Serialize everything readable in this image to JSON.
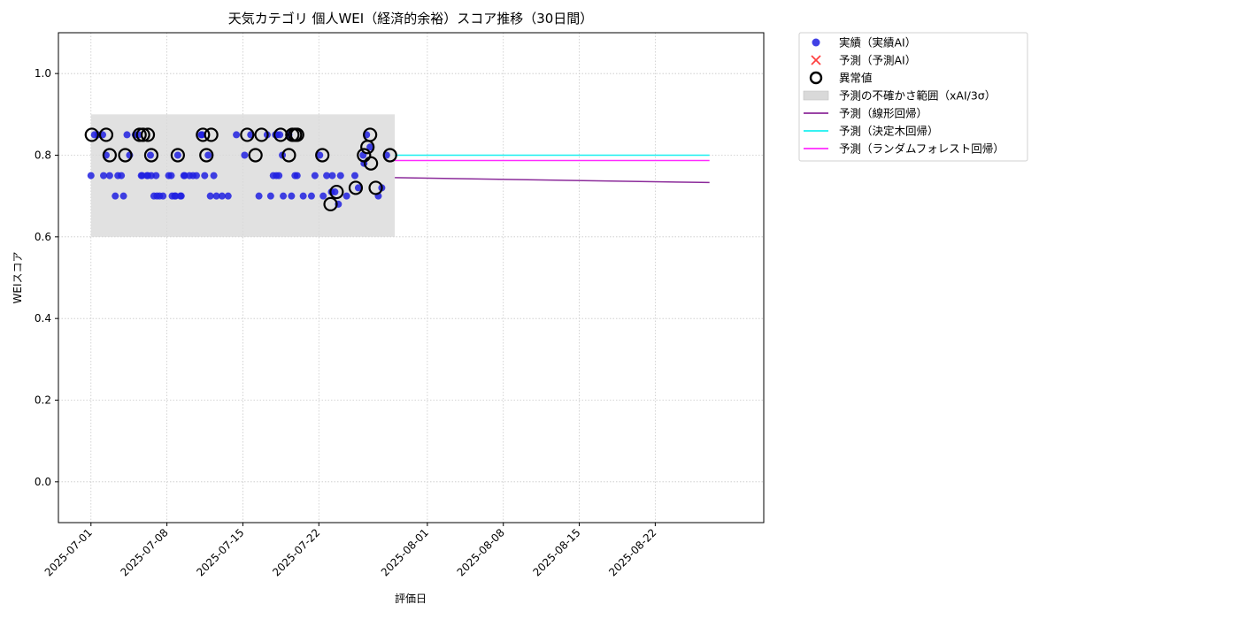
{
  "chart_data": {
    "type": "scatter",
    "title": "天気カテゴリ 個人WEI（経済的余裕）スコア推移（30日間）",
    "xlabel": "評価日",
    "ylabel": "WEIスコア",
    "x_domain": [
      "2025-06-28",
      "2025-09-01"
    ],
    "ylim": [
      -0.1,
      1.1
    ],
    "x_ticks": [
      "2025-07-01",
      "2025-07-08",
      "2025-07-15",
      "2025-07-22",
      "2025-08-01",
      "2025-08-08",
      "2025-08-15",
      "2025-08-22"
    ],
    "y_ticks": [
      0.0,
      0.2,
      0.4,
      0.6,
      0.8,
      1.0
    ],
    "y_tick_labels": [
      "0.0",
      "0.2",
      "0.4",
      "0.6",
      "0.8",
      "1.0"
    ],
    "grid": true,
    "legend_position": "outside-top-right",
    "colors": {
      "actual": "#2020e0",
      "predicted": "#ff4040",
      "anomaly": "#000000",
      "band": "#d9d9d9",
      "linear": "#8b2a9a",
      "tree": "#19f0f0",
      "forest": "#ff2aff"
    },
    "legend": [
      {
        "key": "actual",
        "label": "実績（実績AI）",
        "marker": "circle"
      },
      {
        "key": "predicted",
        "label": "予測（予測AI）",
        "marker": "x"
      },
      {
        "key": "anomaly",
        "label": "異常値",
        "marker": "ring"
      },
      {
        "key": "band",
        "label": "予測の不確かさ範囲（xAI/3σ）",
        "marker": "box"
      },
      {
        "key": "linear",
        "label": "予測（線形回帰）",
        "marker": "line"
      },
      {
        "key": "tree",
        "label": "予測（決定木回帰）",
        "marker": "line"
      },
      {
        "key": "forest",
        "label": "予測（ランダムフォレスト回帰）",
        "marker": "line"
      }
    ],
    "uncertainty_band": {
      "x": [
        "2025-07-01",
        "2025-07-29"
      ],
      "y": [
        0.6,
        0.9
      ]
    },
    "series": [
      {
        "name": "実績（実績AI）",
        "type": "scatter",
        "points": [
          [
            "2025-07-01",
            0.75
          ],
          [
            "2025-07-01",
            0.85
          ],
          [
            "2025-07-01",
            0.85
          ],
          [
            "2025-07-02",
            0.85
          ],
          [
            "2025-07-02",
            0.8
          ],
          [
            "2025-07-02",
            0.75
          ],
          [
            "2025-07-02",
            0.75
          ],
          [
            "2025-07-03",
            0.75
          ],
          [
            "2025-07-03",
            0.75
          ],
          [
            "2025-07-03",
            0.7
          ],
          [
            "2025-07-04",
            0.8
          ],
          [
            "2025-07-04",
            0.7
          ],
          [
            "2025-07-04",
            0.85
          ],
          [
            "2025-07-05",
            0.75
          ],
          [
            "2025-07-05",
            0.85
          ],
          [
            "2025-07-05",
            0.85
          ],
          [
            "2025-07-05",
            0.75
          ],
          [
            "2025-07-06",
            0.75
          ],
          [
            "2025-07-06",
            0.8
          ],
          [
            "2025-07-06",
            0.7
          ],
          [
            "2025-07-06",
            0.75
          ],
          [
            "2025-07-06",
            0.75
          ],
          [
            "2025-07-07",
            0.75
          ],
          [
            "2025-07-07",
            0.7
          ],
          [
            "2025-07-07",
            0.7
          ],
          [
            "2025-07-07",
            0.7
          ],
          [
            "2025-07-08",
            0.75
          ],
          [
            "2025-07-08",
            0.7
          ],
          [
            "2025-07-08",
            0.75
          ],
          [
            "2025-07-08",
            0.7
          ],
          [
            "2025-07-08",
            0.7
          ],
          [
            "2025-07-09",
            0.7
          ],
          [
            "2025-07-09",
            0.75
          ],
          [
            "2025-07-09",
            0.8
          ],
          [
            "2025-07-09",
            0.7
          ],
          [
            "2025-07-09",
            0.75
          ],
          [
            "2025-07-10",
            0.75
          ],
          [
            "2025-07-10",
            0.75
          ],
          [
            "2025-07-10",
            0.75
          ],
          [
            "2025-07-11",
            0.85
          ],
          [
            "2025-07-11",
            0.75
          ],
          [
            "2025-07-11",
            0.8
          ],
          [
            "2025-07-11",
            0.85
          ],
          [
            "2025-07-12",
            0.7
          ],
          [
            "2025-07-12",
            0.7
          ],
          [
            "2025-07-12",
            0.75
          ],
          [
            "2025-07-13",
            0.7
          ],
          [
            "2025-07-13",
            0.7
          ],
          [
            "2025-07-14",
            0.85
          ],
          [
            "2025-07-15",
            0.85
          ],
          [
            "2025-07-15",
            0.8
          ],
          [
            "2025-07-16",
            0.7
          ],
          [
            "2025-07-17",
            0.75
          ],
          [
            "2025-07-17",
            0.85
          ],
          [
            "2025-07-17",
            0.7
          ],
          [
            "2025-07-18",
            0.85
          ],
          [
            "2025-07-18",
            0.75
          ],
          [
            "2025-07-18",
            0.8
          ],
          [
            "2025-07-18",
            0.75
          ],
          [
            "2025-07-18",
            0.85
          ],
          [
            "2025-07-18",
            0.7
          ],
          [
            "2025-07-18",
            0.85
          ],
          [
            "2025-07-19",
            0.7
          ],
          [
            "2025-07-19",
            0.75
          ],
          [
            "2025-07-19",
            0.85
          ],
          [
            "2025-07-20",
            0.7
          ],
          [
            "2025-07-20",
            0.75
          ],
          [
            "2025-07-21",
            0.7
          ],
          [
            "2025-07-21",
            0.75
          ],
          [
            "2025-07-22",
            0.8
          ],
          [
            "2025-07-22",
            0.7
          ],
          [
            "2025-07-22",
            0.75
          ],
          [
            "2025-07-23",
            0.71
          ],
          [
            "2025-07-23",
            0.71
          ],
          [
            "2025-07-23",
            0.68
          ],
          [
            "2025-07-23",
            0.75
          ],
          [
            "2025-07-24",
            0.7
          ],
          [
            "2025-07-24",
            0.75
          ],
          [
            "2025-07-25",
            0.75
          ],
          [
            "2025-07-25",
            0.72
          ],
          [
            "2025-07-26",
            0.8
          ],
          [
            "2025-07-26",
            0.85
          ],
          [
            "2025-07-26",
            0.82
          ],
          [
            "2025-07-26",
            0.78
          ],
          [
            "2025-07-27",
            0.7
          ],
          [
            "2025-07-27",
            0.72
          ],
          [
            "2025-07-28",
            0.8
          ]
        ]
      },
      {
        "name": "異常値",
        "type": "anomaly",
        "points": [
          [
            "2025-07-01",
            0.85
          ],
          [
            "2025-07-02",
            0.85
          ],
          [
            "2025-07-02",
            0.8
          ],
          [
            "2025-07-04",
            0.8
          ],
          [
            "2025-07-05",
            0.85
          ],
          [
            "2025-07-05",
            0.85
          ],
          [
            "2025-07-06",
            0.85
          ],
          [
            "2025-07-06",
            0.8
          ],
          [
            "2025-07-09",
            0.8
          ],
          [
            "2025-07-11",
            0.85
          ],
          [
            "2025-07-11",
            0.8
          ],
          [
            "2025-07-12",
            0.85
          ],
          [
            "2025-07-15",
            0.85
          ],
          [
            "2025-07-16",
            0.85
          ],
          [
            "2025-07-16",
            0.8
          ],
          [
            "2025-07-18",
            0.85
          ],
          [
            "2025-07-19",
            0.85
          ],
          [
            "2025-07-19",
            0.8
          ],
          [
            "2025-07-19",
            0.85
          ],
          [
            "2025-07-20",
            0.85
          ],
          [
            "2025-07-22",
            0.8
          ],
          [
            "2025-07-23",
            0.71
          ],
          [
            "2025-07-23",
            0.68
          ],
          [
            "2025-07-25",
            0.72
          ],
          [
            "2025-07-26",
            0.85
          ],
          [
            "2025-07-26",
            0.8
          ],
          [
            "2025-07-26",
            0.82
          ],
          [
            "2025-07-26",
            0.78
          ],
          [
            "2025-07-27",
            0.72
          ],
          [
            "2025-07-28",
            0.8
          ]
        ]
      },
      {
        "name": "予測（線形回帰）",
        "type": "line",
        "points": [
          [
            "2025-07-29",
            0.745
          ],
          [
            "2025-08-27",
            0.733
          ]
        ]
      },
      {
        "name": "予測（決定木回帰）",
        "type": "line",
        "points": [
          [
            "2025-07-29",
            0.8
          ],
          [
            "2025-08-27",
            0.8
          ]
        ]
      },
      {
        "name": "予測（ランダムフォレスト回帰）",
        "type": "line",
        "points": [
          [
            "2025-07-29",
            0.787
          ],
          [
            "2025-08-27",
            0.787
          ]
        ]
      }
    ]
  }
}
